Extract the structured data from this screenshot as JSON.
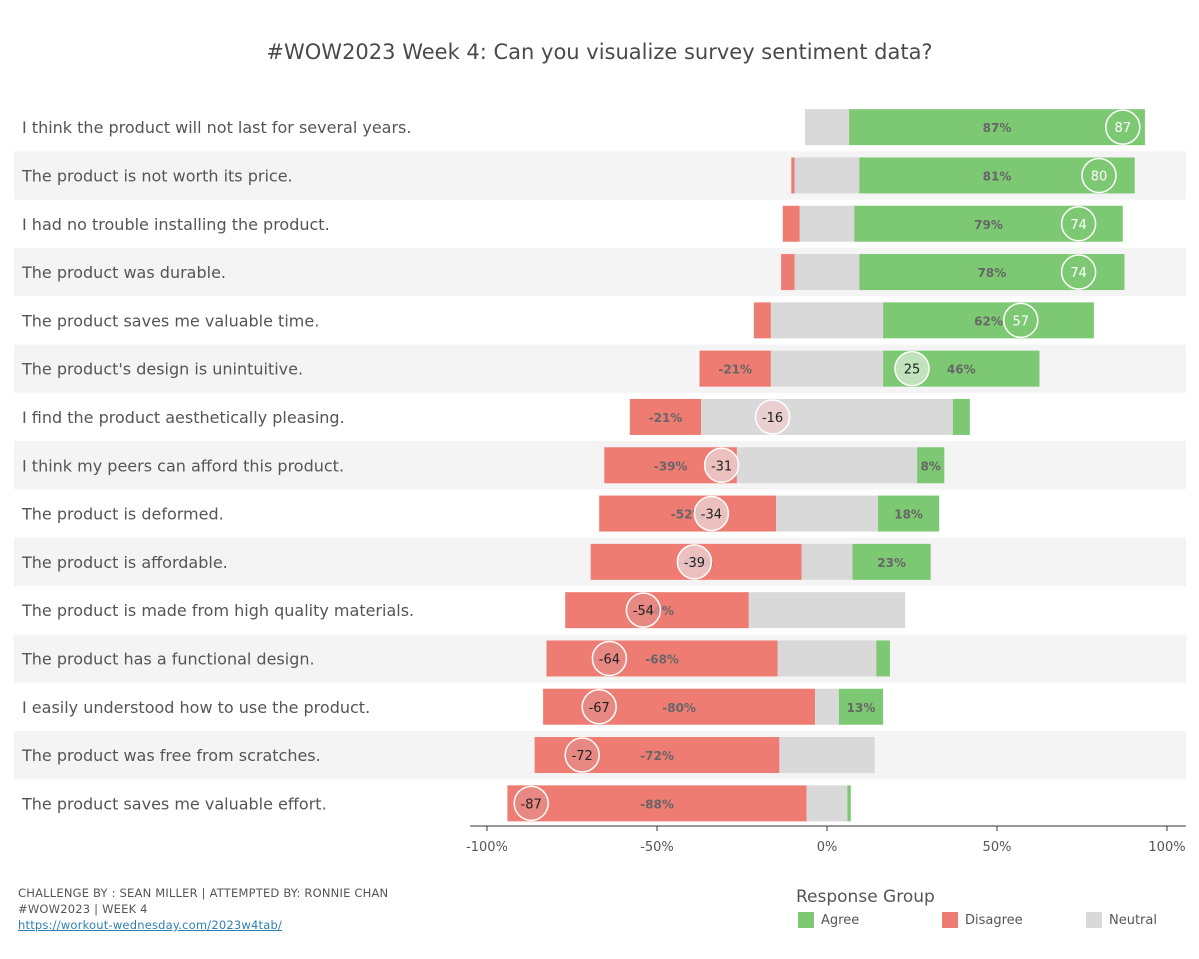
{
  "title": "#WOW2023 Week 4: Can you visualize survey sentiment data?",
  "colors": {
    "agree": "#7dc873",
    "disagree": "#ef7c73",
    "neutral": "#d9d9d9",
    "band": "#f4f4f4"
  },
  "chart_data": {
    "type": "bar",
    "orientation": "horizontal",
    "stacked": "diverging",
    "xlim": [
      -100,
      100
    ],
    "x_ticks": [
      "-100%",
      "-50%",
      "0%",
      "50%",
      "100%"
    ],
    "x_tick_values": [
      -100,
      -50,
      0,
      50,
      100
    ],
    "rows": [
      {
        "statement": "I think the product will not last for several years.",
        "disagree": 0,
        "neutral": 13,
        "agree": 87,
        "disagree_label": "",
        "agree_label": "87%",
        "net": 87
      },
      {
        "statement": "The product is not worth its price.",
        "disagree": 1,
        "neutral": 19,
        "agree": 81,
        "disagree_label": "",
        "agree_label": "81%",
        "net": 80
      },
      {
        "statement": "I had no trouble installing the product.",
        "disagree": 5,
        "neutral": 16,
        "agree": 79,
        "disagree_label": "",
        "agree_label": "79%",
        "net": 74
      },
      {
        "statement": "The product was durable.",
        "disagree": 4,
        "neutral": 19,
        "agree": 78,
        "disagree_label": "",
        "agree_label": "78%",
        "net": 74
      },
      {
        "statement": "The product saves me valuable time.",
        "disagree": 5,
        "neutral": 33,
        "agree": 62,
        "disagree_label": "",
        "agree_label": "62%",
        "net": 57
      },
      {
        "statement": "The product's design is unintuitive.",
        "disagree": 21,
        "neutral": 33,
        "agree": 46,
        "disagree_label": "-21%",
        "agree_label": "46%",
        "net": 25
      },
      {
        "statement": "I find the product aesthetically pleasing.",
        "disagree": 21,
        "neutral": 74,
        "agree": 5,
        "disagree_label": "-21%",
        "agree_label": "",
        "net": -16
      },
      {
        "statement": "I think my peers can afford this product.",
        "disagree": 39,
        "neutral": 53,
        "agree": 8,
        "disagree_label": "-39%",
        "agree_label": "8%",
        "net": -31
      },
      {
        "statement": "The product is deformed.",
        "disagree": 52,
        "neutral": 30,
        "agree": 18,
        "disagree_label": "-52%",
        "agree_label": "18%",
        "net": -34
      },
      {
        "statement": "The product is affordable.",
        "disagree": 62,
        "neutral": 15,
        "agree": 23,
        "disagree_label": "-62%",
        "agree_label": "23%",
        "net": -39
      },
      {
        "statement": "The product is made from high quality materials.",
        "disagree": 54,
        "neutral": 46,
        "agree": 0,
        "disagree_label": "-54%",
        "agree_label": "",
        "net": -54
      },
      {
        "statement": "The product has a functional design.",
        "disagree": 68,
        "neutral": 29,
        "agree": 4,
        "disagree_label": "-68%",
        "agree_label": "",
        "net": -64
      },
      {
        "statement": "I easily understood how to use the product.",
        "disagree": 80,
        "neutral": 7,
        "agree": 13,
        "disagree_label": "-80%",
        "agree_label": "13%",
        "net": -67
      },
      {
        "statement": "The product was free from scratches.",
        "disagree": 72,
        "neutral": 28,
        "agree": 0,
        "disagree_label": "-72%",
        "agree_label": "",
        "net": -72
      },
      {
        "statement": "The product saves me valuable effort.",
        "disagree": 88,
        "neutral": 12,
        "agree": 1,
        "disagree_label": "-88%",
        "agree_label": "",
        "net": -87
      }
    ]
  },
  "footer": {
    "line1": "CHALLENGE BY : SEAN MILLER | ATTEMPTED BY: RONNIE CHAN",
    "line2": "#WOW2023 | WEEK 4",
    "link": "https://workout-wednesday.com/2023w4tab/"
  },
  "legend": {
    "title": "Response Group",
    "items": [
      {
        "label": "Agree",
        "color": "#7dc873"
      },
      {
        "label": "Disagree",
        "color": "#ef7c73"
      },
      {
        "label": "Neutral",
        "color": "#d9d9d9"
      }
    ]
  }
}
